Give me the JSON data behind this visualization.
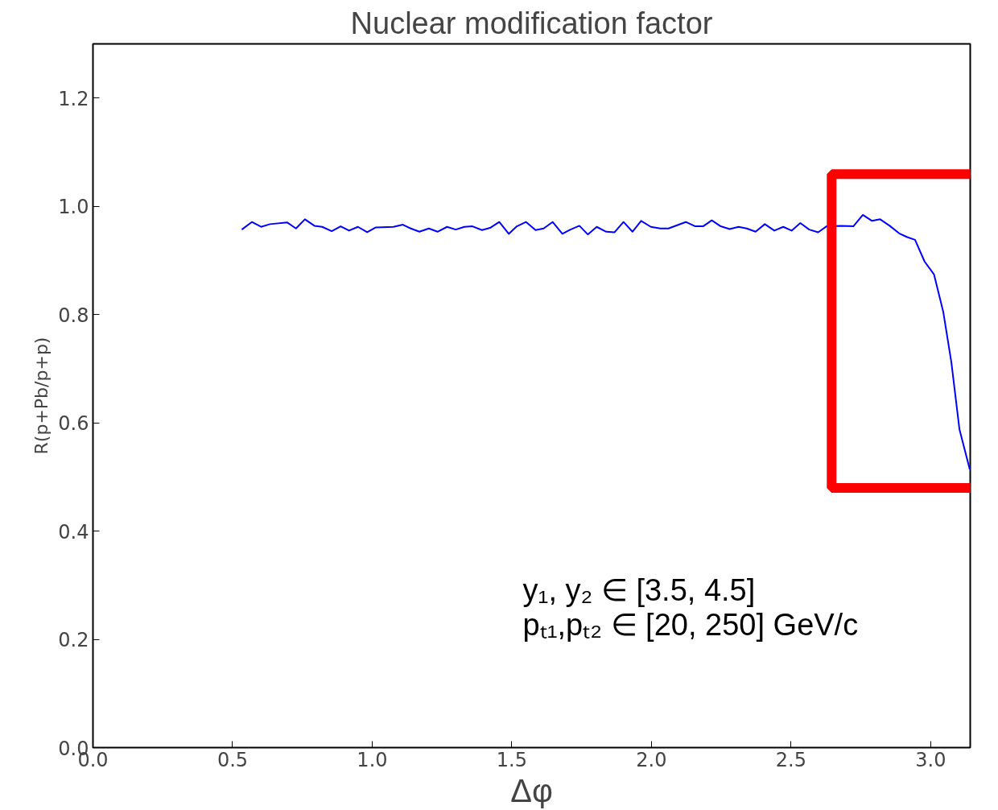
{
  "chart_data": {
    "type": "line",
    "title": "Nuclear modification factor",
    "xlabel": "Δφ",
    "ylabel": "R(p+Pb/p+p)",
    "xlim": [
      0,
      3.1416
    ],
    "ylim": [
      0,
      1.3
    ],
    "xticks": [
      {
        "value": 0,
        "label": "0.0"
      },
      0.5,
      {
        "value": 1,
        "label": "1.0"
      },
      1.5,
      {
        "value": 2,
        "label": "2.0"
      },
      2.5,
      {
        "value": 3,
        "label": "3.0"
      }
    ],
    "yticks": [
      {
        "value": 0,
        "label": "0.0"
      },
      0.2,
      0.4,
      0.6,
      0.8,
      {
        "value": 1,
        "label": "1.0"
      },
      1.2
    ],
    "grid": false,
    "marker": "none",
    "line_style": "solid",
    "annotations": [
      "y₁, y₂ ∈ [3.5, 4.5]",
      "pₜ₁,pₜ₂ ∈ [20, 250] GeV/c"
    ],
    "series": [
      {
        "color": "#0000ff",
        "x": [
          0.533,
          0.569,
          0.602,
          0.634,
          0.696,
          0.727,
          0.759,
          0.793,
          0.821,
          0.855,
          0.887,
          0.917,
          0.949,
          0.982,
          1.013,
          1.076,
          1.11,
          1.138,
          1.169,
          1.203,
          1.234,
          1.268,
          1.299,
          1.33,
          1.359,
          1.393,
          1.422,
          1.455,
          1.489,
          1.518,
          1.551,
          1.585,
          1.614,
          1.646,
          1.681,
          1.71,
          1.742,
          1.772,
          1.804,
          1.838,
          1.868,
          1.9,
          1.932,
          1.963,
          1.998,
          2.032,
          2.061,
          2.123,
          2.157,
          2.185,
          2.216,
          2.248,
          2.28,
          2.312,
          2.341,
          2.373,
          2.406,
          2.44,
          2.472,
          2.502,
          2.533,
          2.565,
          2.597,
          2.627,
          2.68,
          2.723,
          2.757,
          2.79,
          2.819,
          2.853,
          2.887,
          2.916,
          2.944,
          2.978,
          3.012,
          3.045,
          3.074,
          3.103,
          3.14
        ],
        "values": [
          0.957,
          0.971,
          0.962,
          0.967,
          0.97,
          0.959,
          0.976,
          0.964,
          0.962,
          0.954,
          0.963,
          0.955,
          0.962,
          0.952,
          0.961,
          0.962,
          0.966,
          0.959,
          0.953,
          0.959,
          0.953,
          0.962,
          0.957,
          0.962,
          0.963,
          0.956,
          0.96,
          0.971,
          0.949,
          0.963,
          0.971,
          0.956,
          0.959,
          0.971,
          0.949,
          0.957,
          0.964,
          0.948,
          0.962,
          0.953,
          0.952,
          0.971,
          0.953,
          0.973,
          0.962,
          0.959,
          0.959,
          0.971,
          0.963,
          0.963,
          0.974,
          0.963,
          0.958,
          0.962,
          0.959,
          0.953,
          0.967,
          0.955,
          0.962,
          0.955,
          0.969,
          0.957,
          0.952,
          0.963,
          0.964,
          0.963,
          0.984,
          0.973,
          0.976,
          0.964,
          0.95,
          0.943,
          0.938,
          0.898,
          0.874,
          0.805,
          0.712,
          0.588,
          0.514
        ]
      }
    ]
  }
}
